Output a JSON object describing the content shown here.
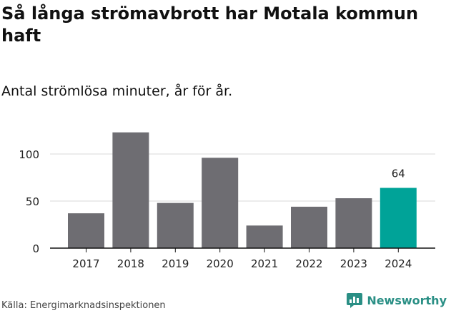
{
  "header": {
    "title": "Så långa strömavbrott har Motala kommun haft",
    "subtitle": "Antal strömlösa minuter, år för år."
  },
  "footer": {
    "source": "Källa: Energimarknadsinspektionen",
    "brand": "Newsworthy"
  },
  "colors": {
    "bar": "#6e6d72",
    "highlight": "#00a398",
    "grid": "#d9d9d9",
    "axis": "#111111",
    "brand": "#2a8f85"
  },
  "chart_data": {
    "type": "bar",
    "title": "Så långa strömavbrott har Motala kommun haft",
    "subtitle": "Antal strömlösa minuter, år för år.",
    "xlabel": "",
    "ylabel": "",
    "categories": [
      "2017",
      "2018",
      "2019",
      "2020",
      "2021",
      "2022",
      "2023",
      "2024"
    ],
    "values": [
      37,
      123,
      48,
      96,
      24,
      44,
      53,
      64
    ],
    "highlight_index": 7,
    "highlight_label": "64",
    "yticks": [
      0,
      50,
      100
    ],
    "ylim": [
      0,
      130
    ],
    "grid": true,
    "legend": "none"
  }
}
